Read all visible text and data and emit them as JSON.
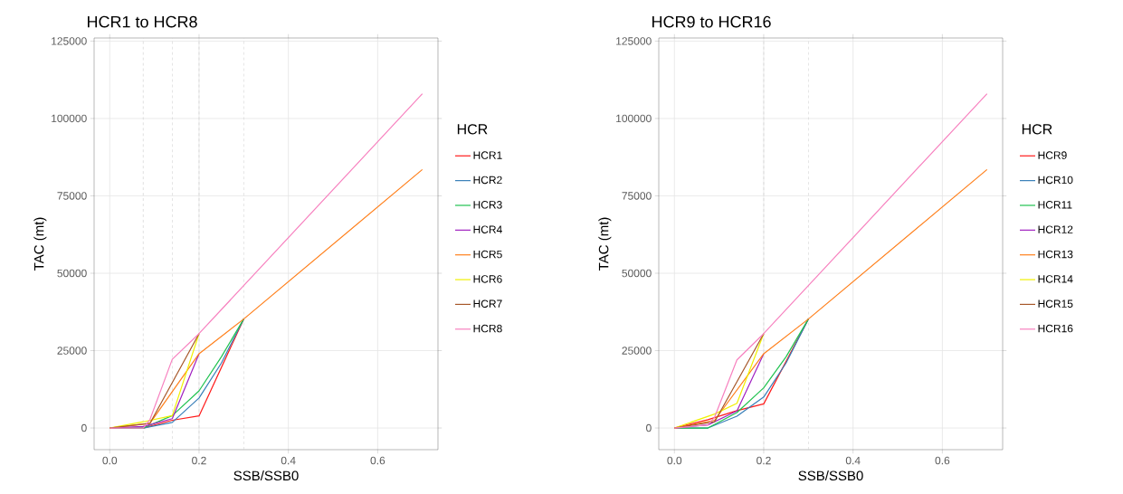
{
  "chart_data": [
    {
      "type": "line",
      "title": "HCR1 to HCR8",
      "xlabel": "SSB/SSB0",
      "ylabel": "TAC (mt)",
      "legend_title": "HCR",
      "legend": "right",
      "grid": true,
      "line_style": "solid",
      "marker": "none",
      "xlim": [
        -0.035,
        0.735
      ],
      "ylim": [
        -7000,
        126000
      ],
      "xticks": [
        {
          "value": 0,
          "label": "0.0"
        },
        0.2,
        0.4,
        0.6
      ],
      "yticks": [
        0,
        25000,
        50000,
        75000,
        100000,
        125000
      ],
      "ref_lines": [
        {
          "axis": "x",
          "value": 0.075,
          "color": "#cccccc",
          "line_style": "dashed"
        },
        {
          "axis": "x",
          "value": 0.14,
          "color": "#cccccc",
          "line_style": "dashed"
        },
        {
          "axis": "x",
          "value": 0.2,
          "color": "#cccccc",
          "line_style": "dashed"
        },
        {
          "axis": "x",
          "value": 0.3,
          "color": "#cccccc",
          "line_style": "dashed"
        }
      ],
      "series": [
        {
          "name": "HCR1",
          "color": "#ff1a1a",
          "x": [
            0,
            0.075,
            0.14,
            0.2,
            0.3
          ],
          "values": [
            0,
            0,
            2500,
            3900,
            35200
          ]
        },
        {
          "name": "HCR2",
          "color": "#377eb8",
          "x": [
            0,
            0.075,
            0.14,
            0.2,
            0.25,
            0.3
          ],
          "values": [
            0,
            0,
            1800,
            9700,
            21000,
            35200
          ]
        },
        {
          "name": "HCR3",
          "color": "#1fc24f",
          "x": [
            0,
            0.075,
            0.14,
            0.2,
            0.25,
            0.3
          ],
          "values": [
            0,
            0,
            4000,
            12000,
            23000,
            35200
          ]
        },
        {
          "name": "HCR4",
          "color": "#a020c0",
          "x": [
            0,
            0.075,
            0.14,
            0.2
          ],
          "values": [
            0,
            500,
            3000,
            24000
          ]
        },
        {
          "name": "HCR5",
          "color": "#ff7f1a",
          "x": [
            0,
            0.09,
            0.2,
            0.3,
            0.7
          ],
          "values": [
            0,
            1500,
            24000,
            35200,
            83500
          ]
        },
        {
          "name": "HCR6",
          "color": "#f0f000",
          "x": [
            0,
            0.075,
            0.14,
            0.2
          ],
          "values": [
            0,
            2000,
            4000,
            30500
          ]
        },
        {
          "name": "HCR7",
          "color": "#a65628",
          "x": [
            0,
            0.09,
            0.2
          ],
          "values": [
            0,
            1500,
            30500
          ]
        },
        {
          "name": "HCR8",
          "color": "#f781bf",
          "x": [
            0,
            0.075,
            0.09,
            0.14,
            0.2,
            0.3,
            0.7
          ],
          "values": [
            0,
            0,
            2700,
            22200,
            30500,
            46000,
            108000
          ]
        }
      ]
    },
    {
      "type": "line",
      "title": "HCR9 to HCR16",
      "xlabel": "SSB/SSB0",
      "ylabel": "TAC (mt)",
      "legend_title": "HCR",
      "legend": "right",
      "grid": true,
      "line_style": "solid",
      "marker": "none",
      "xlim": [
        -0.035,
        0.735
      ],
      "ylim": [
        -7000,
        126000
      ],
      "xticks": [
        {
          "value": 0,
          "label": "0.0"
        },
        0.2,
        0.4,
        0.6
      ],
      "yticks": [
        0,
        25000,
        50000,
        75000,
        100000,
        125000
      ],
      "ref_lines": [
        {
          "axis": "x",
          "value": 0.2,
          "color": "#cccccc",
          "line_style": "dashed"
        },
        {
          "axis": "x",
          "value": 0.3,
          "color": "#cccccc",
          "line_style": "dashed"
        }
      ],
      "series": [
        {
          "name": "HCR9",
          "color": "#ff1a1a",
          "x": [
            0,
            0.075,
            0.14,
            0.2,
            0.3
          ],
          "values": [
            0,
            2700,
            5600,
            7800,
            35200
          ]
        },
        {
          "name": "HCR10",
          "color": "#377eb8",
          "x": [
            0,
            0.075,
            0.14,
            0.2,
            0.25,
            0.3
          ],
          "values": [
            0,
            0,
            3800,
            10000,
            21000,
            35200
          ]
        },
        {
          "name": "HCR11",
          "color": "#1fc24f",
          "x": [
            0,
            0.075,
            0.14,
            0.2,
            0.25,
            0.3
          ],
          "values": [
            0,
            0,
            5000,
            13000,
            23000,
            35200
          ]
        },
        {
          "name": "HCR12",
          "color": "#a020c0",
          "x": [
            0,
            0.075,
            0.14,
            0.2
          ],
          "values": [
            0,
            1000,
            5500,
            24000
          ]
        },
        {
          "name": "HCR13",
          "color": "#ff7f1a",
          "x": [
            0,
            0.09,
            0.2,
            0.3,
            0.7
          ],
          "values": [
            0,
            2500,
            24000,
            35200,
            83500
          ]
        },
        {
          "name": "HCR14",
          "color": "#f0f000",
          "x": [
            0,
            0.09,
            0.14,
            0.2
          ],
          "values": [
            0,
            4500,
            8000,
            30500
          ]
        },
        {
          "name": "HCR15",
          "color": "#a65628",
          "x": [
            0,
            0.09,
            0.2
          ],
          "values": [
            0,
            2000,
            30500
          ]
        },
        {
          "name": "HCR16",
          "color": "#f781bf",
          "x": [
            0,
            0.075,
            0.09,
            0.14,
            0.2,
            0.3,
            0.7
          ],
          "values": [
            0,
            1000,
            3500,
            22000,
            30500,
            46000,
            108000
          ]
        }
      ]
    }
  ]
}
